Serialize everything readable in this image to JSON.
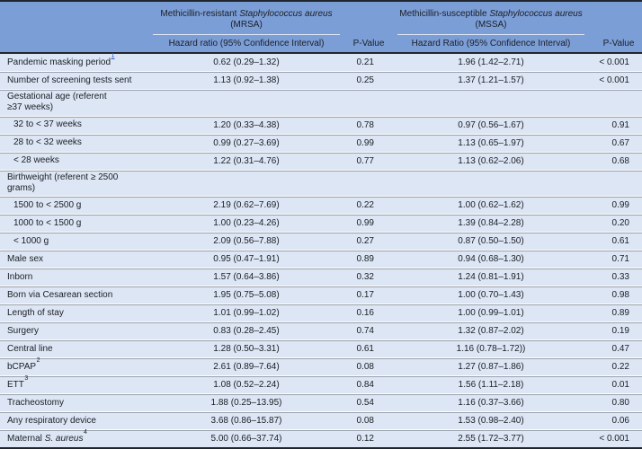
{
  "title": "Hazard ratios for MRSA and MSSA acquisition by predictor",
  "colors": {
    "header_bg": "#7c9ed7",
    "row_bg": "#dce6f4",
    "separator": "#99a1ab",
    "border_dark": "#20262e",
    "text": "#1a1e24",
    "footnote_link": "#2b59c8"
  },
  "header": {
    "groups": [
      {
        "line1_prefix": "Methicillin-resistant ",
        "line1_italic": "Staphylococcus aureus",
        "line2": "(MRSA)",
        "hr_label": "Hazard ratio (95% Confidence Interval)",
        "p_label": "P-Value"
      },
      {
        "line1_prefix": "Methicillin-susceptible ",
        "line1_italic": "Staphylococcus aureus",
        "line2": "(MSSA)",
        "hr_label": "Hazard Ratio (95% Confidence Interval)",
        "p_label": "P-Value"
      }
    ]
  },
  "rows": [
    {
      "label": "Pandemic masking period",
      "sup": "1",
      "link": true,
      "mrsa_hr": "0.62 (0.29–1.32)",
      "mrsa_p": "0.21",
      "mssa_hr": "1.96 (1.42–2.71)",
      "mssa_p": "< 0.001"
    },
    {
      "label": "Number of screening tests sent",
      "mrsa_hr": "1.13 (0.92–1.38)",
      "mrsa_p": "0.25",
      "mssa_hr": "1.37 (1.21–1.57)",
      "mssa_p": "< 0.001"
    },
    {
      "label": "Gestational age (referent\n≥37 weeks)",
      "section": true,
      "mrsa_hr": "",
      "mrsa_p": "",
      "mssa_hr": "",
      "mssa_p": ""
    },
    {
      "label": "32 to < 37 weeks",
      "indent": true,
      "mrsa_hr": "1.20 (0.33–4.38)",
      "mrsa_p": "0.78",
      "mssa_hr": "0.97 (0.56–1.67)",
      "mssa_p": "0.91"
    },
    {
      "label": "28 to < 32 weeks",
      "indent": true,
      "mrsa_hr": "0.99 (0.27–3.69)",
      "mrsa_p": "0.99",
      "mssa_hr": "1.13 (0.65–1.97)",
      "mssa_p": "0.67"
    },
    {
      "label": "< 28 weeks",
      "indent": true,
      "mrsa_hr": "1.22 (0.31–4.76)",
      "mrsa_p": "0.77",
      "mssa_hr": "1.13 (0.62–2.06)",
      "mssa_p": "0.68"
    },
    {
      "label": "Birthweight (referent ≥ 2500\ngrams)",
      "section": true,
      "mrsa_hr": "",
      "mrsa_p": "",
      "mssa_hr": "",
      "mssa_p": ""
    },
    {
      "label": "1500 to < 2500 g",
      "indent": true,
      "mrsa_hr": "2.19 (0.62–7.69)",
      "mrsa_p": "0.22",
      "mssa_hr": "1.00 (0.62–1.62)",
      "mssa_p": "0.99"
    },
    {
      "label": "1000 to < 1500 g",
      "indent": true,
      "mrsa_hr": "1.00 (0.23–4.26)",
      "mrsa_p": "0.99",
      "mssa_hr": "1.39 (0.84–2.28)",
      "mssa_p": "0.20"
    },
    {
      "label": "< 1000 g",
      "indent": true,
      "mrsa_hr": "2.09 (0.56–7.88)",
      "mrsa_p": "0.27",
      "mssa_hr": "0.87 (0.50–1.50)",
      "mssa_p": "0.61"
    },
    {
      "label": "Male sex",
      "mrsa_hr": "0.95 (0.47–1.91)",
      "mrsa_p": "0.89",
      "mssa_hr": "0.94 (0.68–1.30)",
      "mssa_p": "0.71"
    },
    {
      "label": "Inborn",
      "mrsa_hr": "1.57 (0.64–3.86)",
      "mrsa_p": "0.32",
      "mssa_hr": "1.24 (0.81–1.91)",
      "mssa_p": "0.33"
    },
    {
      "label": "Born via Cesarean section",
      "mrsa_hr": "1.95 (0.75–5.08)",
      "mrsa_p": "0.17",
      "mssa_hr": "1.00 (0.70–1.43)",
      "mssa_p": "0.98"
    },
    {
      "label": "Length of stay",
      "mrsa_hr": "1.01 (0.99–1.02)",
      "mrsa_p": "0.16",
      "mssa_hr": "1.00 (0.99–1.01)",
      "mssa_p": "0.89"
    },
    {
      "label": "Surgery",
      "mrsa_hr": "0.83 (0.28–2.45)",
      "mrsa_p": "0.74",
      "mssa_hr": "1.32 (0.87–2.02)",
      "mssa_p": "0.19"
    },
    {
      "label": "Central line",
      "mrsa_hr": "1.28 (0.50–3.31)",
      "mrsa_p": "0.61",
      "mssa_hr": "1.16 (0.78–1.72))",
      "mssa_p": "0.47"
    },
    {
      "label": "bCPAP",
      "sup": "2",
      "mrsa_hr": "2.61 (0.89–7.64)",
      "mrsa_p": "0.08",
      "mssa_hr": "1.27 (0.87–1.86)",
      "mssa_p": "0.22"
    },
    {
      "label": "ETT",
      "sup": "3",
      "mrsa_hr": "1.08 (0.52–2.24)",
      "mrsa_p": "0.84",
      "mssa_hr": "1.56 (1.11–2.18)",
      "mssa_p": "0.01"
    },
    {
      "label": "Tracheostomy",
      "mrsa_hr": "1.88 (0.25–13.95)",
      "mrsa_p": "0.54",
      "mssa_hr": "1.16 (0.37–3.66)",
      "mssa_p": "0.80"
    },
    {
      "label": "Any respiratory device",
      "mrsa_hr": "3.68 (0.86–15.87)",
      "mrsa_p": "0.08",
      "mssa_hr": "1.53 (0.98–2.40)",
      "mssa_p": "0.06"
    },
    {
      "label": "Maternal ",
      "italic": "S. aureus",
      "sup": "4",
      "mrsa_hr": "5.00 (0.66–37.74)",
      "mrsa_p": "0.12",
      "mssa_hr": "2.55 (1.72–3.77)",
      "mssa_p": "< 0.001"
    }
  ]
}
